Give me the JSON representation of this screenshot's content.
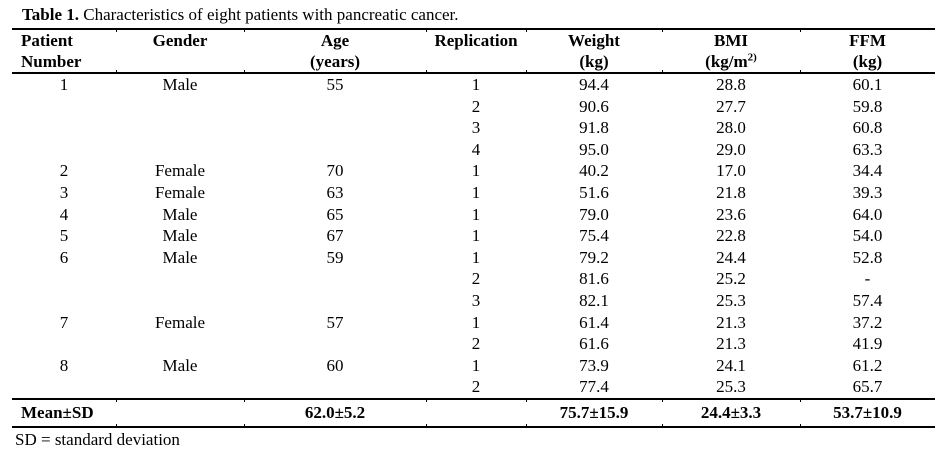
{
  "title": {
    "label": "Table 1.",
    "text": " Characteristics of eight patients with pancreatic cancer."
  },
  "table": {
    "columns": [
      {
        "id": "patient",
        "line1": "Patient",
        "line2": "Number"
      },
      {
        "id": "gender",
        "line1": "Gender",
        "line2": ""
      },
      {
        "id": "age",
        "line1": "Age",
        "line2": "(years)"
      },
      {
        "id": "replication",
        "line1": "Replication",
        "line2": ""
      },
      {
        "id": "weight",
        "line1": "Weight",
        "line2": "(kg)"
      },
      {
        "id": "bmi",
        "line1": "BMI",
        "line2": "(kg/m",
        "line2_sup": "2)"
      },
      {
        "id": "ffm",
        "line1": "FFM",
        "line2": "(kg)"
      }
    ],
    "rows": [
      [
        "1",
        "Male",
        "55",
        "1",
        "94.4",
        "28.8",
        "60.1"
      ],
      [
        "",
        "",
        "",
        "2",
        "90.6",
        "27.7",
        "59.8"
      ],
      [
        "",
        "",
        "",
        "3",
        "91.8",
        "28.0",
        "60.8"
      ],
      [
        "",
        "",
        "",
        "4",
        "95.0",
        "29.0",
        "63.3"
      ],
      [
        "2",
        "Female",
        "70",
        "1",
        "40.2",
        "17.0",
        "34.4"
      ],
      [
        "3",
        "Female",
        "63",
        "1",
        "51.6",
        "21.8",
        "39.3"
      ],
      [
        "4",
        "Male",
        "65",
        "1",
        "79.0",
        "23.6",
        "64.0"
      ],
      [
        "5",
        "Male",
        "67",
        "1",
        "75.4",
        "22.8",
        "54.0"
      ],
      [
        "6",
        "Male",
        "59",
        "1",
        "79.2",
        "24.4",
        "52.8"
      ],
      [
        "",
        "",
        "",
        "2",
        "81.6",
        "25.2",
        "-"
      ],
      [
        "",
        "",
        "",
        "3",
        "82.1",
        "25.3",
        "57.4"
      ],
      [
        "7",
        "Female",
        "57",
        "1",
        "61.4",
        "21.3",
        "37.2"
      ],
      [
        "",
        "",
        "",
        "2",
        "61.6",
        "21.3",
        "41.9"
      ],
      [
        "8",
        "Male",
        "60",
        "1",
        "73.9",
        "24.1",
        "61.2"
      ],
      [
        "",
        "",
        "",
        "2",
        "77.4",
        "25.3",
        "65.7"
      ]
    ],
    "mean_row": [
      "Mean±SD",
      "",
      "62.0±5.2",
      "",
      "75.7±15.9",
      "24.4±3.3",
      "53.7±10.9"
    ],
    "footnote": "SD = standard deviation"
  },
  "chart_data": {
    "type": "table",
    "title": "Table 1. Characteristics of eight patients with pancreatic cancer.",
    "columns": [
      "Patient Number",
      "Gender",
      "Age (years)",
      "Replication",
      "Weight (kg)",
      "BMI (kg/m2)",
      "FFM (kg)"
    ],
    "summary": {
      "age": "62.0±5.2",
      "weight": "75.7±15.9",
      "bmi": "24.4±3.3",
      "ffm": "53.7±10.9"
    }
  },
  "colors": {
    "text": "#000000",
    "background": "#ffffff",
    "rule": "#000000"
  }
}
